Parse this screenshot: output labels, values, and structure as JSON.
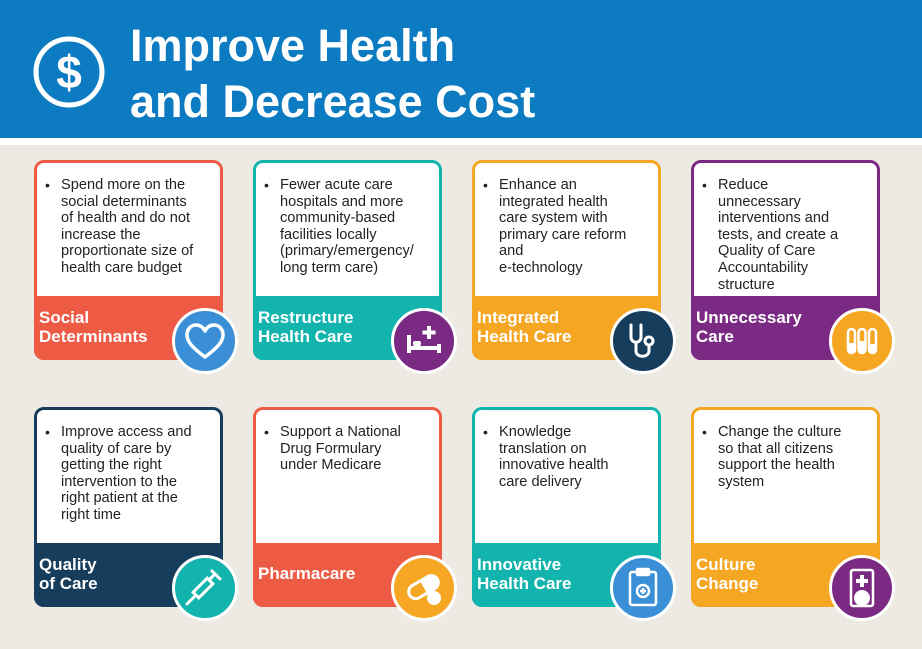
{
  "header": {
    "title_line1": "Improve Health",
    "title_line2": "and Decrease Cost",
    "icon": "dollar-icon"
  },
  "colors": {
    "header_blue": "#0c7bc1",
    "coral": "#ee5b45",
    "teal": "#14b4ae",
    "orange": "#f5a623",
    "purple": "#7b2a84",
    "navy": "#173d5c",
    "sky": "#3a8fd6"
  },
  "cards": [
    {
      "bullet": "Spend more on the\nsocial determinants\nof health and do not\nincrease the\nproportionate size of\nhealth care budget",
      "label": "Social\nDeterminants",
      "icon": "heart-icon"
    },
    {
      "bullet": "Fewer acute care\nhospitals and more\ncommunity-based\nfacilities locally\n(primary/emergency/\nlong term care)",
      "label": "Restructure\nHealth Care",
      "icon": "hospital-bed-icon"
    },
    {
      "bullet": "Enhance an\nintegrated health\ncare system with\nprimary care reform\nand\ne-technology",
      "label": "Integrated\nHealth Care",
      "icon": "stethoscope-icon"
    },
    {
      "bullet": "Reduce\nunnecessary\ninterventions and\ntests, and create a\nQuality of Care\nAccountability\nstructure",
      "label": "Unnecessary\nCare",
      "icon": "test-tubes-icon"
    },
    {
      "bullet": "Improve access and\nquality of care by\ngetting the right\nintervention to the\nright patient at the\nright time",
      "label": "Quality\nof Care",
      "icon": "syringe-icon"
    },
    {
      "bullet": "Support a National\nDrug Formulary\nunder Medicare",
      "label": "Pharmacare",
      "icon": "pill-icon"
    },
    {
      "bullet": "Knowledge\ntranslation on\ninnovative health\ncare delivery",
      "label": "Innovative\nHealth Care",
      "icon": "clipboard-icon"
    },
    {
      "bullet": "Change the culture\nso that all citizens\nsupport the health\nsystem",
      "label": "Culture\nChange",
      "icon": "medicine-bottle-icon"
    }
  ]
}
